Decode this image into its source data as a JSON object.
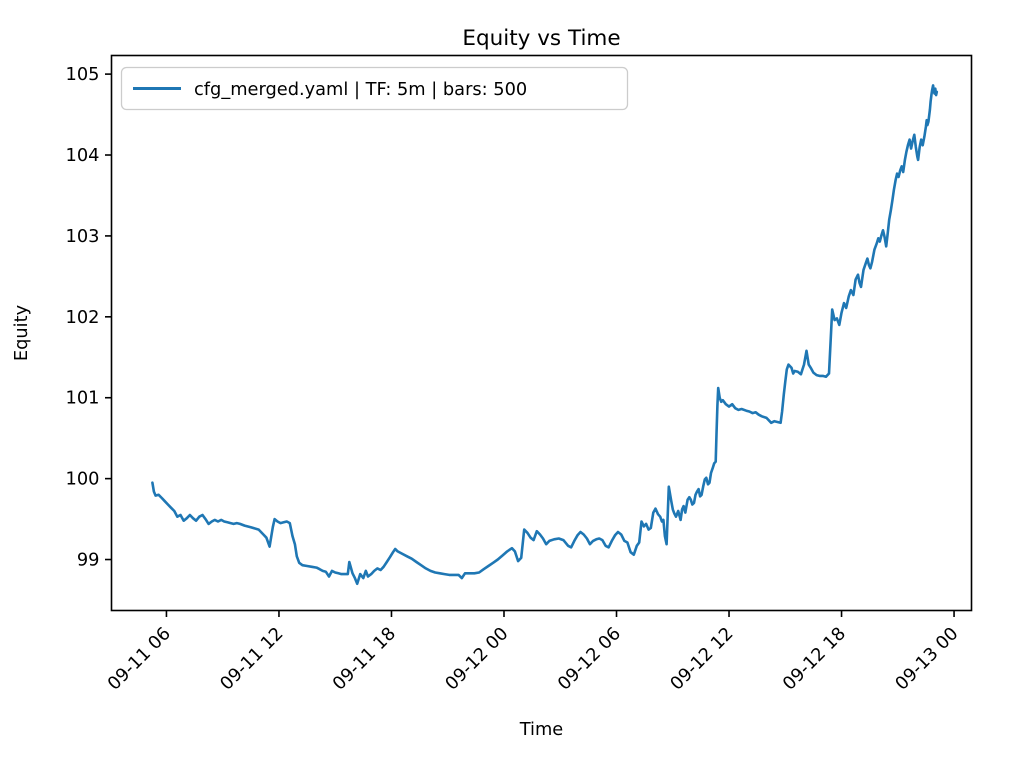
{
  "figure": {
    "title": "Equity vs Time",
    "xlabel": "Time",
    "ylabel": "Equity",
    "background": "#ffffff",
    "spine_color": "#000000",
    "legend": {
      "label": "cfg_merged.yaml | TF: 5m | bars: 500",
      "swatch_color": "#1f77b4",
      "border_color": "#cccccc"
    }
  },
  "chart_data": {
    "type": "line",
    "title": "Equity vs Time",
    "xlabel": "Time",
    "ylabel": "Equity",
    "grid": false,
    "legend_position": "upper left",
    "x_unit": "hours since 09-11 00:00",
    "xlim_hours": [
      3.07,
      48.93
    ],
    "ylim": [
      98.37,
      105.23
    ],
    "yticks": [
      99,
      100,
      101,
      102,
      103,
      104,
      105
    ],
    "xticks": [
      {
        "hour": 6,
        "label": "09-11 06"
      },
      {
        "hour": 12,
        "label": "09-11 12"
      },
      {
        "hour": 18,
        "label": "09-11 18"
      },
      {
        "hour": 24,
        "label": "09-12 00"
      },
      {
        "hour": 30,
        "label": "09-12 06"
      },
      {
        "hour": 36,
        "label": "09-12 12"
      },
      {
        "hour": 42,
        "label": "09-12 18"
      },
      {
        "hour": 48,
        "label": "09-13 00"
      }
    ],
    "series": [
      {
        "name": "cfg_merged.yaml | TF: 5m | bars: 500",
        "color": "#1f77b4",
        "line_width": 2.6,
        "points": [
          [
            5.25,
            99.95
          ],
          [
            5.33,
            99.84
          ],
          [
            5.42,
            99.79
          ],
          [
            5.58,
            99.8
          ],
          [
            5.75,
            99.76
          ],
          [
            5.92,
            99.72
          ],
          [
            6.08,
            99.68
          ],
          [
            6.25,
            99.64
          ],
          [
            6.42,
            99.6
          ],
          [
            6.58,
            99.53
          ],
          [
            6.75,
            99.55
          ],
          [
            6.92,
            99.48
          ],
          [
            7.08,
            99.51
          ],
          [
            7.25,
            99.55
          ],
          [
            7.42,
            99.51
          ],
          [
            7.58,
            99.48
          ],
          [
            7.75,
            99.53
          ],
          [
            7.92,
            99.55
          ],
          [
            8.08,
            99.5
          ],
          [
            8.25,
            99.44
          ],
          [
            8.42,
            99.47
          ],
          [
            8.58,
            99.49
          ],
          [
            8.75,
            99.47
          ],
          [
            8.92,
            99.49
          ],
          [
            9.08,
            99.47
          ],
          [
            9.25,
            99.46
          ],
          [
            9.42,
            99.45
          ],
          [
            9.58,
            99.44
          ],
          [
            9.75,
            99.45
          ],
          [
            9.92,
            99.44
          ],
          [
            10.17,
            99.42
          ],
          [
            10.5,
            99.4
          ],
          [
            10.92,
            99.37
          ],
          [
            11.17,
            99.31
          ],
          [
            11.33,
            99.27
          ],
          [
            11.5,
            99.16
          ],
          [
            11.67,
            99.4
          ],
          [
            11.77,
            99.5
          ],
          [
            11.92,
            99.47
          ],
          [
            12.08,
            99.45
          ],
          [
            12.25,
            99.46
          ],
          [
            12.42,
            99.47
          ],
          [
            12.58,
            99.45
          ],
          [
            12.72,
            99.29
          ],
          [
            12.85,
            99.19
          ],
          [
            12.95,
            99.04
          ],
          [
            13.08,
            98.96
          ],
          [
            13.25,
            98.93
          ],
          [
            13.5,
            98.92
          ],
          [
            13.75,
            98.91
          ],
          [
            14.0,
            98.9
          ],
          [
            14.17,
            98.88
          ],
          [
            14.33,
            98.86
          ],
          [
            14.5,
            98.85
          ],
          [
            14.67,
            98.79
          ],
          [
            14.83,
            98.86
          ],
          [
            15.0,
            98.84
          ],
          [
            15.17,
            98.83
          ],
          [
            15.33,
            98.82
          ],
          [
            15.5,
            98.82
          ],
          [
            15.67,
            98.82
          ],
          [
            15.75,
            98.97
          ],
          [
            15.92,
            98.83
          ],
          [
            16.05,
            98.77
          ],
          [
            16.17,
            98.7
          ],
          [
            16.33,
            98.82
          ],
          [
            16.5,
            98.77
          ],
          [
            16.63,
            98.86
          ],
          [
            16.75,
            98.79
          ],
          [
            16.92,
            98.82
          ],
          [
            17.08,
            98.86
          ],
          [
            17.25,
            98.89
          ],
          [
            17.42,
            98.87
          ],
          [
            17.58,
            98.91
          ],
          [
            17.75,
            98.97
          ],
          [
            17.92,
            99.03
          ],
          [
            18.08,
            99.09
          ],
          [
            18.2,
            99.13
          ],
          [
            18.33,
            99.1
          ],
          [
            18.58,
            99.07
          ],
          [
            18.83,
            99.04
          ],
          [
            19.08,
            99.01
          ],
          [
            19.33,
            98.97
          ],
          [
            19.58,
            98.93
          ],
          [
            19.83,
            98.89
          ],
          [
            20.08,
            98.86
          ],
          [
            20.33,
            98.84
          ],
          [
            20.58,
            98.83
          ],
          [
            20.83,
            98.82
          ],
          [
            21.08,
            98.81
          ],
          [
            21.33,
            98.81
          ],
          [
            21.58,
            98.81
          ],
          [
            21.75,
            98.77
          ],
          [
            21.92,
            98.83
          ],
          [
            22.17,
            98.83
          ],
          [
            22.42,
            98.83
          ],
          [
            22.67,
            98.84
          ],
          [
            22.92,
            98.88
          ],
          [
            23.17,
            98.92
          ],
          [
            23.42,
            98.96
          ],
          [
            23.67,
            99.0
          ],
          [
            23.92,
            99.05
          ],
          [
            24.17,
            99.1
          ],
          [
            24.42,
            99.14
          ],
          [
            24.58,
            99.1
          ],
          [
            24.75,
            98.98
          ],
          [
            24.92,
            99.02
          ],
          [
            25.08,
            99.37
          ],
          [
            25.25,
            99.33
          ],
          [
            25.42,
            99.27
          ],
          [
            25.58,
            99.24
          ],
          [
            25.75,
            99.35
          ],
          [
            25.92,
            99.31
          ],
          [
            26.08,
            99.26
          ],
          [
            26.25,
            99.19
          ],
          [
            26.42,
            99.23
          ],
          [
            26.67,
            99.25
          ],
          [
            26.92,
            99.26
          ],
          [
            27.17,
            99.24
          ],
          [
            27.42,
            99.17
          ],
          [
            27.58,
            99.15
          ],
          [
            27.75,
            99.23
          ],
          [
            27.92,
            99.3
          ],
          [
            28.08,
            99.34
          ],
          [
            28.25,
            99.31
          ],
          [
            28.42,
            99.26
          ],
          [
            28.58,
            99.19
          ],
          [
            28.75,
            99.23
          ],
          [
            28.92,
            99.25
          ],
          [
            29.08,
            99.26
          ],
          [
            29.25,
            99.24
          ],
          [
            29.42,
            99.17
          ],
          [
            29.58,
            99.15
          ],
          [
            29.75,
            99.23
          ],
          [
            29.92,
            99.3
          ],
          [
            30.08,
            99.34
          ],
          [
            30.25,
            99.31
          ],
          [
            30.42,
            99.23
          ],
          [
            30.58,
            99.21
          ],
          [
            30.75,
            99.09
          ],
          [
            30.92,
            99.06
          ],
          [
            31.08,
            99.17
          ],
          [
            31.21,
            99.21
          ],
          [
            31.33,
            99.47
          ],
          [
            31.46,
            99.41
          ],
          [
            31.58,
            99.44
          ],
          [
            31.71,
            99.37
          ],
          [
            31.83,
            99.39
          ],
          [
            31.96,
            99.58
          ],
          [
            32.08,
            99.63
          ],
          [
            32.21,
            99.56
          ],
          [
            32.33,
            99.53
          ],
          [
            32.42,
            99.47
          ],
          [
            32.5,
            99.49
          ],
          [
            32.58,
            99.29
          ],
          [
            32.67,
            99.19
          ],
          [
            32.79,
            99.9
          ],
          [
            32.92,
            99.72
          ],
          [
            33.0,
            99.62
          ],
          [
            33.08,
            99.57
          ],
          [
            33.17,
            99.53
          ],
          [
            33.29,
            99.6
          ],
          [
            33.42,
            99.49
          ],
          [
            33.5,
            99.62
          ],
          [
            33.58,
            99.66
          ],
          [
            33.67,
            99.58
          ],
          [
            33.79,
            99.74
          ],
          [
            33.88,
            99.77
          ],
          [
            33.96,
            99.74
          ],
          [
            34.04,
            99.68
          ],
          [
            34.13,
            99.7
          ],
          [
            34.21,
            99.8
          ],
          [
            34.29,
            99.84
          ],
          [
            34.38,
            99.87
          ],
          [
            34.46,
            99.78
          ],
          [
            34.54,
            99.8
          ],
          [
            34.63,
            99.91
          ],
          [
            34.71,
            99.99
          ],
          [
            34.79,
            100.01
          ],
          [
            34.88,
            99.93
          ],
          [
            34.96,
            99.95
          ],
          [
            35.04,
            100.07
          ],
          [
            35.13,
            100.13
          ],
          [
            35.21,
            100.19
          ],
          [
            35.29,
            100.21
          ],
          [
            35.33,
            100.55
          ],
          [
            35.38,
            100.9
          ],
          [
            35.42,
            101.12
          ],
          [
            35.5,
            101.0
          ],
          [
            35.58,
            100.95
          ],
          [
            35.67,
            100.97
          ],
          [
            35.83,
            100.92
          ],
          [
            36.0,
            100.89
          ],
          [
            36.17,
            100.92
          ],
          [
            36.33,
            100.87
          ],
          [
            36.5,
            100.85
          ],
          [
            36.67,
            100.86
          ],
          [
            36.92,
            100.84
          ],
          [
            37.08,
            100.83
          ],
          [
            37.25,
            100.81
          ],
          [
            37.42,
            100.82
          ],
          [
            37.58,
            100.79
          ],
          [
            37.75,
            100.77
          ],
          [
            38.0,
            100.75
          ],
          [
            38.25,
            100.69
          ],
          [
            38.42,
            100.71
          ],
          [
            38.58,
            100.7
          ],
          [
            38.75,
            100.69
          ],
          [
            38.83,
            100.83
          ],
          [
            38.92,
            101.04
          ],
          [
            39.0,
            101.2
          ],
          [
            39.08,
            101.35
          ],
          [
            39.17,
            101.41
          ],
          [
            39.33,
            101.37
          ],
          [
            39.42,
            101.3
          ],
          [
            39.5,
            101.33
          ],
          [
            39.67,
            101.32
          ],
          [
            39.83,
            101.29
          ],
          [
            40.0,
            101.41
          ],
          [
            40.13,
            101.58
          ],
          [
            40.25,
            101.41
          ],
          [
            40.38,
            101.36
          ],
          [
            40.5,
            101.31
          ],
          [
            40.67,
            101.28
          ],
          [
            40.83,
            101.27
          ],
          [
            41.0,
            101.27
          ],
          [
            41.17,
            101.26
          ],
          [
            41.33,
            101.3
          ],
          [
            41.42,
            101.72
          ],
          [
            41.5,
            102.09
          ],
          [
            41.63,
            101.96
          ],
          [
            41.75,
            101.98
          ],
          [
            41.88,
            101.9
          ],
          [
            42.0,
            102.05
          ],
          [
            42.13,
            102.17
          ],
          [
            42.25,
            102.11
          ],
          [
            42.38,
            102.25
          ],
          [
            42.5,
            102.33
          ],
          [
            42.63,
            102.27
          ],
          [
            42.75,
            102.46
          ],
          [
            42.88,
            102.52
          ],
          [
            42.96,
            102.42
          ],
          [
            43.04,
            102.37
          ],
          [
            43.17,
            102.58
          ],
          [
            43.29,
            102.66
          ],
          [
            43.38,
            102.72
          ],
          [
            43.46,
            102.64
          ],
          [
            43.54,
            102.6
          ],
          [
            43.63,
            102.68
          ],
          [
            43.75,
            102.83
          ],
          [
            43.88,
            102.91
          ],
          [
            43.96,
            102.97
          ],
          [
            44.04,
            102.93
          ],
          [
            44.13,
            103.01
          ],
          [
            44.21,
            103.07
          ],
          [
            44.29,
            102.99
          ],
          [
            44.38,
            102.87
          ],
          [
            44.46,
            103.03
          ],
          [
            44.54,
            103.2
          ],
          [
            44.63,
            103.32
          ],
          [
            44.71,
            103.44
          ],
          [
            44.79,
            103.57
          ],
          [
            44.88,
            103.69
          ],
          [
            44.96,
            103.77
          ],
          [
            45.04,
            103.73
          ],
          [
            45.13,
            103.81
          ],
          [
            45.21,
            103.86
          ],
          [
            45.29,
            103.79
          ],
          [
            45.38,
            103.94
          ],
          [
            45.46,
            104.04
          ],
          [
            45.54,
            104.12
          ],
          [
            45.63,
            104.19
          ],
          [
            45.71,
            104.08
          ],
          [
            45.79,
            104.17
          ],
          [
            45.88,
            104.25
          ],
          [
            45.96,
            104.1
          ],
          [
            46.04,
            103.98
          ],
          [
            46.08,
            103.94
          ],
          [
            46.17,
            104.1
          ],
          [
            46.25,
            104.19
          ],
          [
            46.33,
            104.12
          ],
          [
            46.42,
            104.23
          ],
          [
            46.5,
            104.35
          ],
          [
            46.54,
            104.43
          ],
          [
            46.58,
            104.37
          ],
          [
            46.63,
            104.41
          ],
          [
            46.71,
            104.56
          ],
          [
            46.75,
            104.66
          ],
          [
            46.79,
            104.74
          ],
          [
            46.83,
            104.8
          ],
          [
            46.88,
            104.86
          ],
          [
            46.92,
            104.78
          ],
          [
            46.96,
            104.76
          ],
          [
            47.0,
            104.82
          ],
          [
            47.04,
            104.74
          ],
          [
            47.08,
            104.78
          ]
        ]
      }
    ]
  }
}
